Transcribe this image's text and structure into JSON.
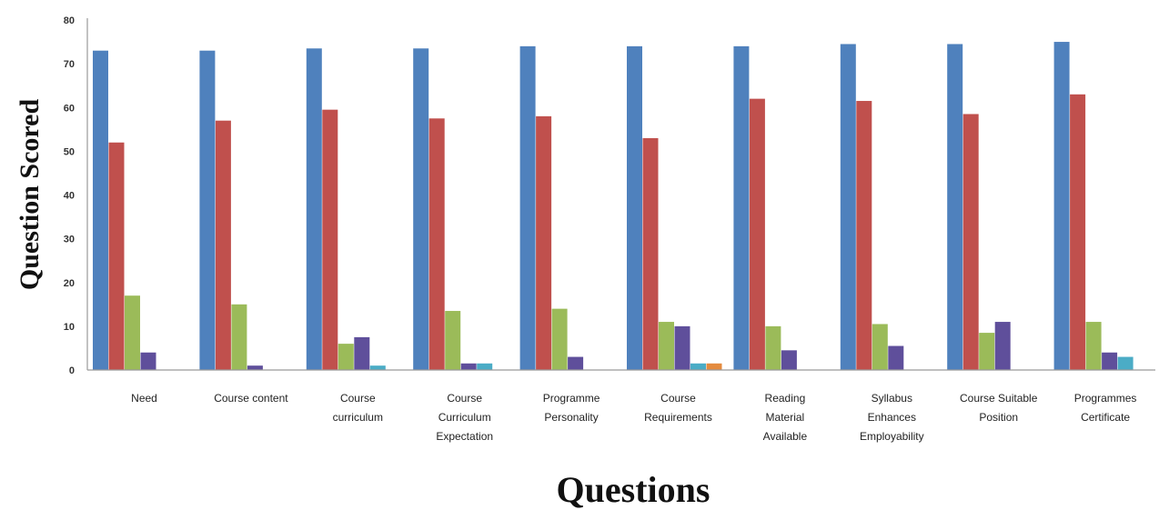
{
  "chart_data": {
    "type": "bar",
    "xlabel": "Questions",
    "ylabel": "Question Scored",
    "ylim": [
      0,
      80
    ],
    "yticks": [
      "0",
      "10",
      "20",
      "30",
      "40",
      "50",
      "60",
      "70",
      "80"
    ],
    "grid": false,
    "legend": "none",
    "categories": [
      [
        "Need"
      ],
      [
        "Course content"
      ],
      [
        "Course",
        "curriculum"
      ],
      [
        "Course",
        "Curriculum",
        "Expectation"
      ],
      [
        "Programme",
        "Personality"
      ],
      [
        "Course",
        "Requirements"
      ],
      [
        "Reading",
        "Material",
        "Available"
      ],
      [
        "Syllabus",
        "Enhances",
        "Employability"
      ],
      [
        "Course Suitable",
        "Position"
      ],
      [
        "Programmes",
        "Certificate"
      ]
    ],
    "series": [
      {
        "color": "#4f81bd",
        "values": [
          73,
          73,
          73.5,
          73.5,
          74,
          74,
          74,
          74.5,
          74.5,
          75
        ]
      },
      {
        "color": "#c0504d",
        "values": [
          52,
          57,
          59.5,
          57.5,
          58,
          53,
          62,
          61.5,
          58.5,
          63
        ]
      },
      {
        "color": "#9bbb59",
        "values": [
          17,
          15,
          6,
          13.5,
          14,
          11,
          10,
          10.5,
          8.5,
          11
        ]
      },
      {
        "color": "#5f4f9b",
        "values": [
          4,
          1,
          7.5,
          1.5,
          3,
          10,
          4.5,
          5.5,
          11,
          4
        ]
      },
      {
        "color": "#4bacc6",
        "values": [
          0,
          0,
          1,
          1.5,
          0,
          1.5,
          0,
          0,
          0,
          3
        ]
      },
      {
        "color": "#e48b3f",
        "values": [
          0,
          0,
          0,
          0,
          0,
          1.5,
          0,
          0,
          0,
          0
        ]
      }
    ]
  }
}
